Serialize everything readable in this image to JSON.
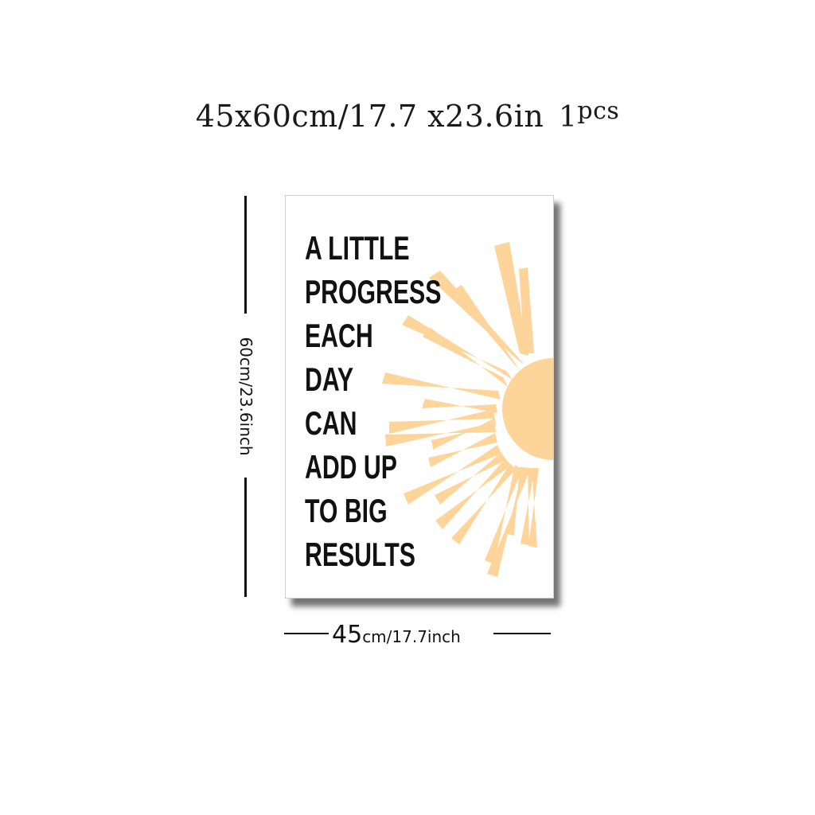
{
  "title": {
    "size_text": "45x60cm/17.7 x23.6in",
    "quantity_number": "1",
    "quantity_unit": "pcs"
  },
  "dimensions": {
    "height_label": "60cm/23.6inch",
    "width_value": "45",
    "width_unit_text": "cm/17.7inch"
  },
  "poster": {
    "quote_lines": [
      "A LITTLE",
      "PROGRESS",
      "EACH",
      "DAY",
      "CAN",
      "ADD UP",
      "TO BIG",
      "RESULTS"
    ],
    "sun_color": "#fdd49a",
    "text_color": "#111111"
  }
}
